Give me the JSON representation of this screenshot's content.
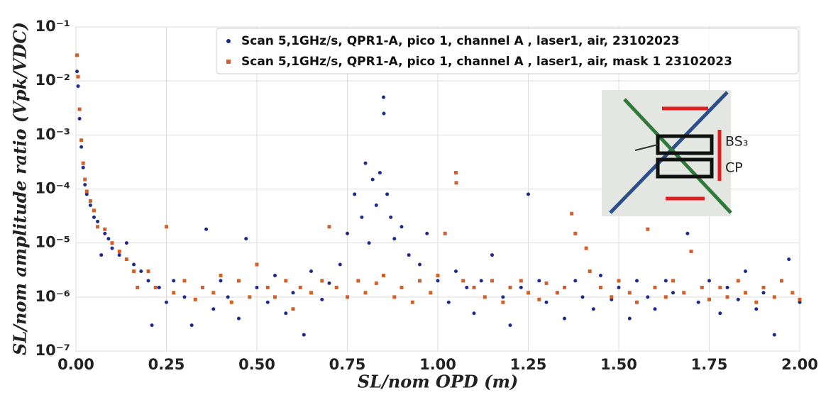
{
  "chart_data": {
    "type": "scatter",
    "x_label": "SL/nom OPD (m)",
    "y_label": "SL/nom amplitude ratio (Vpk/VDC)",
    "log_y": true,
    "grid": true,
    "legend": "upper right",
    "xlim": [
      0,
      2
    ],
    "ylim": [
      1e-07,
      0.1
    ],
    "xticks": [
      {
        "value": 0,
        "label": "0.00"
      },
      {
        "value": 0.25,
        "label": "0.25"
      },
      {
        "value": 0.5,
        "label": "0.50"
      },
      {
        "value": 0.75,
        "label": "0.75"
      },
      {
        "value": 1,
        "label": "1.00"
      },
      {
        "value": 1.25,
        "label": "1.25"
      },
      {
        "value": 1.5,
        "label": "1.50"
      },
      {
        "value": 1.75,
        "label": "1.75"
      },
      {
        "value": 2,
        "label": "2.00"
      }
    ],
    "yticks": [
      {
        "value": 1e-07,
        "label": "10⁻⁷"
      },
      {
        "value": 1e-06,
        "label": "10⁻⁶"
      },
      {
        "value": 1e-05,
        "label": "10⁻⁵"
      },
      {
        "value": 0.0001,
        "label": "10⁻⁴"
      },
      {
        "value": 0.001,
        "label": "10⁻³"
      },
      {
        "value": 0.01,
        "label": "10⁻²"
      },
      {
        "value": 0.1,
        "label": "10⁻¹"
      }
    ],
    "annotations": [
      "BS₃",
      "CP"
    ],
    "series": [
      {
        "name": "Scan 5,1GHz/s, QPR1-A, pico 1, channel A , laser1, air, 23102023",
        "color": "#1c2a8c",
        "marker": "circle",
        "x": [
          0.003,
          0.006,
          0.01,
          0.015,
          0.02,
          0.025,
          0.03,
          0.04,
          0.05,
          0.06,
          0.07,
          0.08,
          0.09,
          0.1,
          0.12,
          0.14,
          0.16,
          0.18,
          0.2,
          0.21,
          0.23,
          0.25,
          0.27,
          0.3,
          0.32,
          0.35,
          0.36,
          0.38,
          0.4,
          0.42,
          0.45,
          0.47,
          0.5,
          0.53,
          0.55,
          0.58,
          0.6,
          0.63,
          0.65,
          0.68,
          0.7,
          0.73,
          0.75,
          0.77,
          0.79,
          0.8,
          0.81,
          0.82,
          0.83,
          0.84,
          0.85,
          0.851,
          0.86,
          0.87,
          0.88,
          0.9,
          0.92,
          0.95,
          0.97,
          1.0,
          1.03,
          1.05,
          1.08,
          1.1,
          1.12,
          1.15,
          1.18,
          1.2,
          1.23,
          1.25,
          1.28,
          1.3,
          1.33,
          1.35,
          1.38,
          1.4,
          1.43,
          1.45,
          1.48,
          1.5,
          1.53,
          1.55,
          1.58,
          1.6,
          1.63,
          1.65,
          1.69,
          1.72,
          1.75,
          1.78,
          1.8,
          1.83,
          1.85,
          1.88,
          1.9,
          1.93,
          1.95,
          1.97,
          2.0
        ],
        "values": [
          0.015,
          0.008,
          0.002,
          0.0006,
          0.00025,
          0.00012,
          8e-05,
          5e-05,
          3e-05,
          2.5e-05,
          6e-06,
          1.5e-05,
          1.2e-05,
          8e-06,
          6e-06,
          1e-05,
          4e-06,
          3e-06,
          2e-06,
          3e-07,
          1.5e-06,
          8e-07,
          2e-06,
          1e-06,
          3e-07,
          1.5e-06,
          1.8e-05,
          6e-07,
          2e-06,
          1e-06,
          4e-07,
          1.2e-05,
          1.5e-06,
          8e-07,
          2.5e-06,
          5e-07,
          1.2e-06,
          2e-07,
          3e-06,
          9e-07,
          1.8e-06,
          4e-06,
          1.5e-05,
          8e-05,
          3e-05,
          0.0003,
          1e-05,
          0.00015,
          5e-05,
          0.0002,
          0.005,
          0.0025,
          8e-05,
          3e-05,
          1.2e-05,
          2e-05,
          6e-06,
          4e-06,
          1.5e-05,
          2e-06,
          8e-07,
          3e-06,
          1.5e-06,
          5e-07,
          2e-06,
          6e-06,
          1e-06,
          3e-07,
          1.5e-06,
          8e-05,
          2e-06,
          8e-07,
          1.2e-06,
          4e-07,
          2e-06,
          1e-06,
          6e-07,
          2.5e-06,
          9e-07,
          1.5e-06,
          4e-07,
          2e-06,
          1e-06,
          6e-07,
          2e-06,
          1.2e-06,
          1.5e-05,
          8e-07,
          2e-06,
          5e-07,
          1.5e-06,
          9e-07,
          3e-06,
          6e-07,
          1.2e-06,
          2e-07,
          2e-06,
          5e-06,
          8e-07
        ]
      },
      {
        "name": "Scan 5,1GHz/s, QPR1-A, pico 1, channel A , laser1, air, mask 1 23102023",
        "color": "#d2602a",
        "marker": "square",
        "x": [
          0.003,
          0.006,
          0.01,
          0.015,
          0.02,
          0.025,
          0.03,
          0.04,
          0.05,
          0.06,
          0.08,
          0.1,
          0.12,
          0.14,
          0.16,
          0.17,
          0.2,
          0.22,
          0.25,
          0.27,
          0.3,
          0.33,
          0.35,
          0.38,
          0.4,
          0.43,
          0.45,
          0.48,
          0.5,
          0.53,
          0.55,
          0.58,
          0.6,
          0.62,
          0.65,
          0.68,
          0.7,
          0.72,
          0.75,
          0.78,
          0.8,
          0.83,
          0.85,
          0.88,
          0.9,
          0.93,
          0.95,
          0.98,
          1.0,
          1.02,
          1.05,
          1.051,
          1.07,
          1.1,
          1.13,
          1.15,
          1.18,
          1.2,
          1.23,
          1.25,
          1.28,
          1.3,
          1.33,
          1.35,
          1.37,
          1.38,
          1.41,
          1.42,
          1.45,
          1.48,
          1.5,
          1.53,
          1.55,
          1.58,
          1.6,
          1.63,
          1.65,
          1.68,
          1.7,
          1.73,
          1.75,
          1.78,
          1.8,
          1.83,
          1.85,
          1.88,
          1.9,
          1.93,
          1.95,
          1.98,
          2.0
        ],
        "values": [
          0.03,
          0.012,
          0.003,
          0.0008,
          0.0003,
          0.00015,
          9e-05,
          6e-05,
          4e-05,
          2e-05,
          1.8e-05,
          1e-05,
          7e-06,
          5e-06,
          3e-06,
          1.5e-06,
          3e-06,
          1.5e-06,
          2e-05,
          1.2e-06,
          2e-06,
          9e-07,
          1.5e-06,
          1.2e-06,
          2.5e-06,
          8e-07,
          2e-06,
          1e-06,
          4e-06,
          1.5e-06,
          1e-06,
          2e-06,
          6e-07,
          1.5e-06,
          1.2e-06,
          2e-06,
          2e-05,
          1.5e-06,
          1e-06,
          2e-06,
          1.2e-06,
          1.8e-06,
          2.5e-06,
          1e-06,
          1.5e-06,
          8e-07,
          2e-06,
          1.2e-06,
          2.5e-06,
          1.5e-05,
          0.0002,
          0.00013,
          2e-06,
          1.5e-06,
          1e-06,
          2e-06,
          8e-07,
          1.5e-06,
          2e-06,
          1.2e-06,
          9e-07,
          1.8e-06,
          1.2e-06,
          1.5e-06,
          3.5e-05,
          1.5e-05,
          8e-06,
          3e-06,
          1.5e-06,
          1e-06,
          2e-06,
          1.2e-06,
          8e-07,
          1.8e-05,
          1.5e-06,
          1e-06,
          2e-06,
          1.2e-06,
          7e-06,
          1.5e-06,
          9e-07,
          1.5e-06,
          1e-06,
          2e-06,
          1.2e-06,
          8e-07,
          1.5e-06,
          1e-06,
          2e-06,
          1.2e-06,
          9e-07
        ]
      }
    ]
  }
}
